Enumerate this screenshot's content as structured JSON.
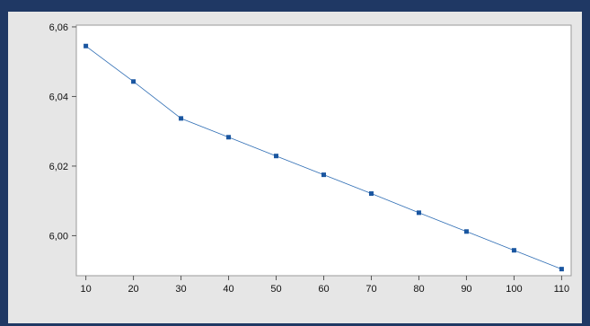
{
  "chart_data": {
    "type": "line",
    "title": "",
    "xlabel": "",
    "ylabel": "",
    "x": [
      10,
      20,
      30,
      40,
      50,
      60,
      70,
      80,
      90,
      100,
      110
    ],
    "series": [
      {
        "values": [
          6.0545,
          6.0443,
          6.0337,
          6.0283,
          6.0229,
          6.0175,
          6.0121,
          6.0066,
          6.0012,
          5.9958,
          5.9904
        ],
        "color": "#2e6db4",
        "marker": "square"
      }
    ],
    "xticks": [
      "10",
      "20",
      "30",
      "40",
      "50",
      "60",
      "70",
      "80",
      "90",
      "100",
      "110"
    ],
    "yticks": [
      {
        "value": 6.06,
        "label": "6,06"
      },
      {
        "value": 6.04,
        "label": "6,04"
      },
      {
        "value": 6.02,
        "label": "6,02"
      },
      {
        "value": 6.0,
        "label": "6,00"
      }
    ],
    "xlim": [
      8,
      112
    ],
    "ylim": [
      5.9885,
      6.0605
    ],
    "grid": false,
    "legend": "none"
  }
}
